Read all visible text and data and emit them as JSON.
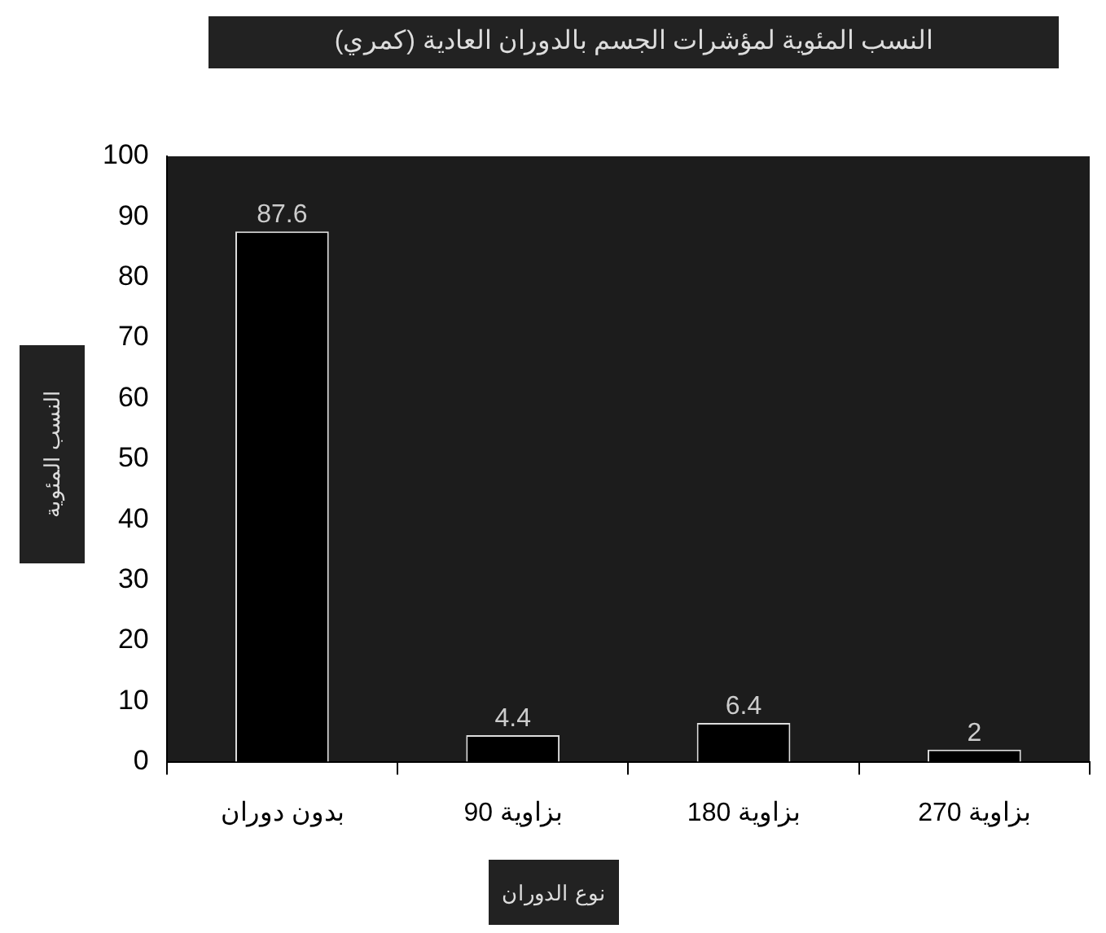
{
  "chart_data": {
    "type": "bar",
    "title": "النسب المئوية لمؤشرات الجسم بالدوران العادية (كمري)",
    "xlabel": "نوع الدوران",
    "ylabel": "النسب المئوية",
    "categories": [
      "بدون دوران",
      "بزاوية 90",
      "بزاوية 180",
      "بزاوية 270"
    ],
    "values": [
      87.6,
      4.4,
      6.4,
      2
    ],
    "color": "#000000",
    "data_labels": true,
    "ylim": [
      0,
      100
    ],
    "yticks": [
      0,
      10,
      20,
      30,
      40,
      50,
      60,
      70,
      80,
      90,
      100
    ],
    "grid": false,
    "legend": false
  }
}
